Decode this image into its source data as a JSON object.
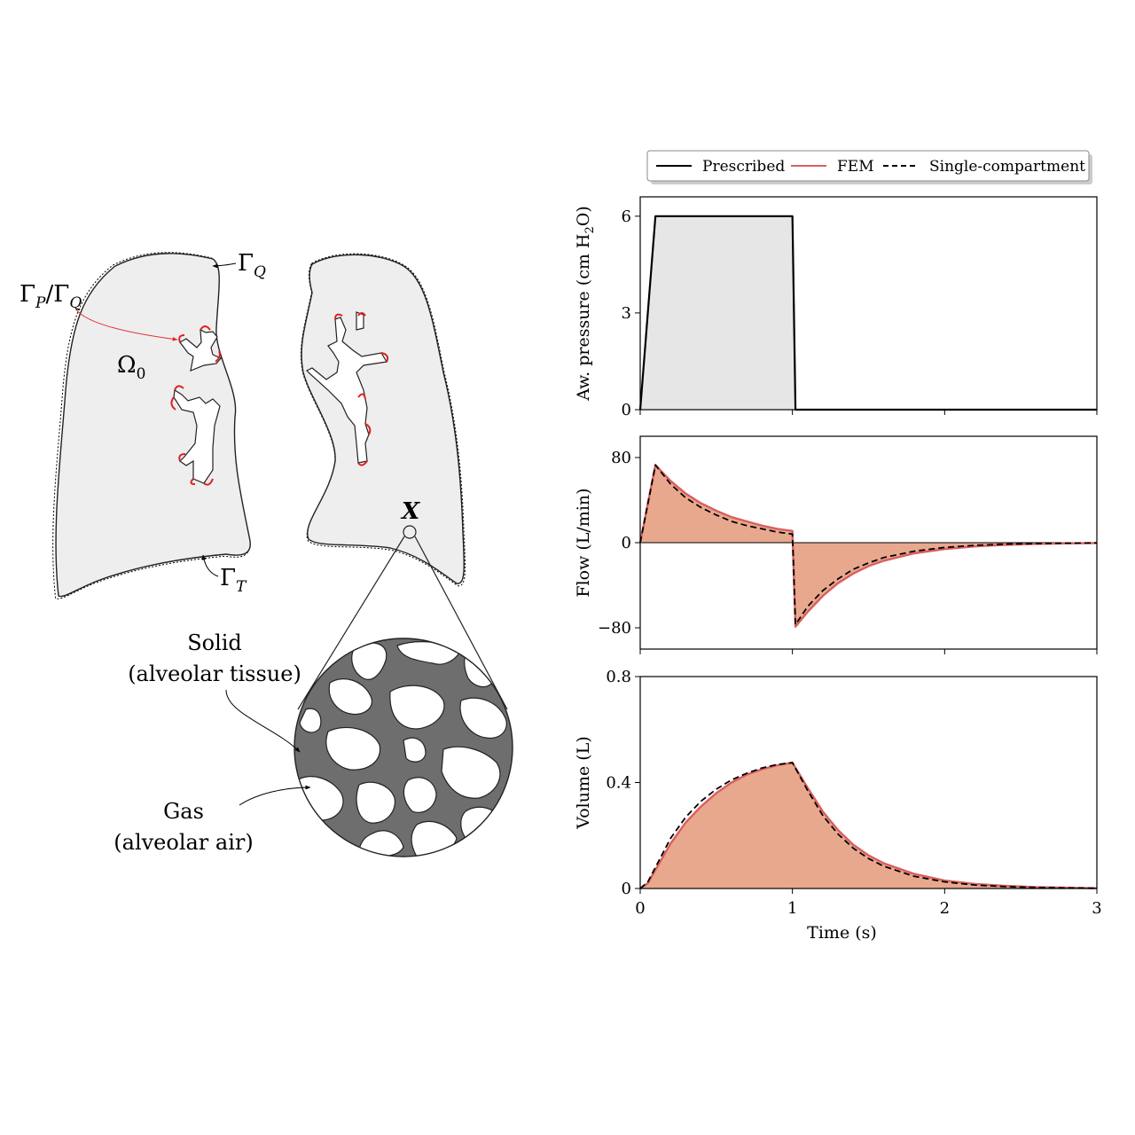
{
  "diagram": {
    "gamma_q": "Γ",
    "gamma_q_sub": "Q",
    "gamma_pq_a": "Γ",
    "gamma_pq_a_sub": "P",
    "gamma_pq_slash": "/Γ",
    "gamma_pq_b_sub": "Q",
    "omega": "Ω",
    "omega_sub": "0",
    "gamma_t": "Γ",
    "gamma_t_sub": "T",
    "point_x": "X",
    "solid_label_1": "Solid",
    "solid_label_2": "(alveolar tissue)",
    "gas_label_1": "Gas",
    "gas_label_2": "(alveolar air)"
  },
  "legend": {
    "prescribed": "Prescribed",
    "fem": "FEM",
    "single": "Single-compartment"
  },
  "colors": {
    "prescribed": "#000000",
    "fem": "#d95f5f",
    "fill_fem": "#e8a88e",
    "fill_pressure": "#e6e6e6",
    "tissue": "#6e6e6e",
    "lung_fill": "#eeeeee"
  },
  "chart_data": [
    {
      "type": "line",
      "ylabel_main": "Aw. pressure (cm H",
      "ylabel_sub": "2",
      "ylabel_end": "O)",
      "yticks": [
        "0",
        "3",
        "6"
      ],
      "ylim": [
        0,
        6.6
      ],
      "xlim": [
        0,
        3
      ],
      "series": [
        {
          "name": "Prescribed",
          "x": [
            0,
            0.1,
            1.0,
            1.02,
            3.0
          ],
          "y": [
            0,
            6,
            6,
            0,
            0
          ]
        }
      ]
    },
    {
      "type": "line",
      "ylabel": "Flow (L/min)",
      "yticks": [
        "80",
        "0",
        "−80"
      ],
      "ylim": [
        -100,
        100
      ],
      "xlim": [
        0,
        3
      ],
      "series": [
        {
          "name": "FEM",
          "x": [
            0,
            0.1,
            0.2,
            0.3,
            0.4,
            0.5,
            0.6,
            0.7,
            0.8,
            0.9,
            1.0,
            1.02,
            1.1,
            1.2,
            1.3,
            1.4,
            1.5,
            1.6,
            1.8,
            2.0,
            2.2,
            2.4,
            2.6,
            2.8,
            3.0
          ],
          "y": [
            0,
            73,
            58,
            46,
            37,
            30,
            24,
            20,
            16,
            13,
            11,
            -79,
            -65,
            -50,
            -38,
            -29,
            -22,
            -17,
            -10,
            -6,
            -3.5,
            -2,
            -1.2,
            -0.7,
            -0.4
          ]
        },
        {
          "name": "Single-compartment",
          "x": [
            0,
            0.1,
            0.2,
            0.3,
            0.4,
            0.5,
            0.6,
            0.7,
            0.8,
            0.9,
            1.0,
            1.02,
            1.1,
            1.2,
            1.3,
            1.4,
            1.5,
            1.6,
            1.8,
            2.0,
            2.2,
            2.4,
            2.6,
            2.8,
            3.0
          ],
          "y": [
            0,
            73,
            55,
            42,
            33,
            26,
            20,
            16,
            13,
            10,
            8,
            -77,
            -60,
            -45,
            -34,
            -25,
            -19,
            -14,
            -8,
            -4.5,
            -2.5,
            -1.4,
            -0.8,
            -0.4,
            -0.2
          ]
        }
      ]
    },
    {
      "type": "line",
      "ylabel": "Volume (L)",
      "xlabel": "Time (s)",
      "yticks": [
        "0",
        "0.4",
        "0.8"
      ],
      "xticks": [
        "0",
        "1",
        "2",
        "3"
      ],
      "ylim": [
        0,
        0.8
      ],
      "xlim": [
        0,
        3
      ],
      "series": [
        {
          "name": "FEM",
          "x": [
            0,
            0.05,
            0.1,
            0.2,
            0.3,
            0.4,
            0.5,
            0.6,
            0.7,
            0.8,
            0.9,
            1.0,
            1.1,
            1.2,
            1.3,
            1.4,
            1.5,
            1.6,
            1.8,
            2.0,
            2.2,
            2.4,
            2.6,
            2.8,
            3.0
          ],
          "y": [
            0,
            0.02,
            0.07,
            0.17,
            0.25,
            0.31,
            0.36,
            0.4,
            0.43,
            0.45,
            0.465,
            0.475,
            0.38,
            0.29,
            0.22,
            0.165,
            0.125,
            0.095,
            0.055,
            0.03,
            0.017,
            0.01,
            0.005,
            0.003,
            0.001
          ]
        },
        {
          "name": "Single-compartment",
          "x": [
            0,
            0.05,
            0.1,
            0.2,
            0.3,
            0.4,
            0.5,
            0.6,
            0.7,
            0.8,
            0.9,
            1.0,
            1.1,
            1.2,
            1.3,
            1.4,
            1.5,
            1.6,
            1.8,
            2.0,
            2.2,
            2.4,
            2.6,
            2.8,
            3.0
          ],
          "y": [
            0,
            0.025,
            0.08,
            0.19,
            0.27,
            0.33,
            0.375,
            0.41,
            0.435,
            0.455,
            0.468,
            0.475,
            0.37,
            0.275,
            0.205,
            0.152,
            0.113,
            0.084,
            0.046,
            0.025,
            0.013,
            0.007,
            0.004,
            0.002,
            0.001
          ]
        }
      ]
    }
  ]
}
